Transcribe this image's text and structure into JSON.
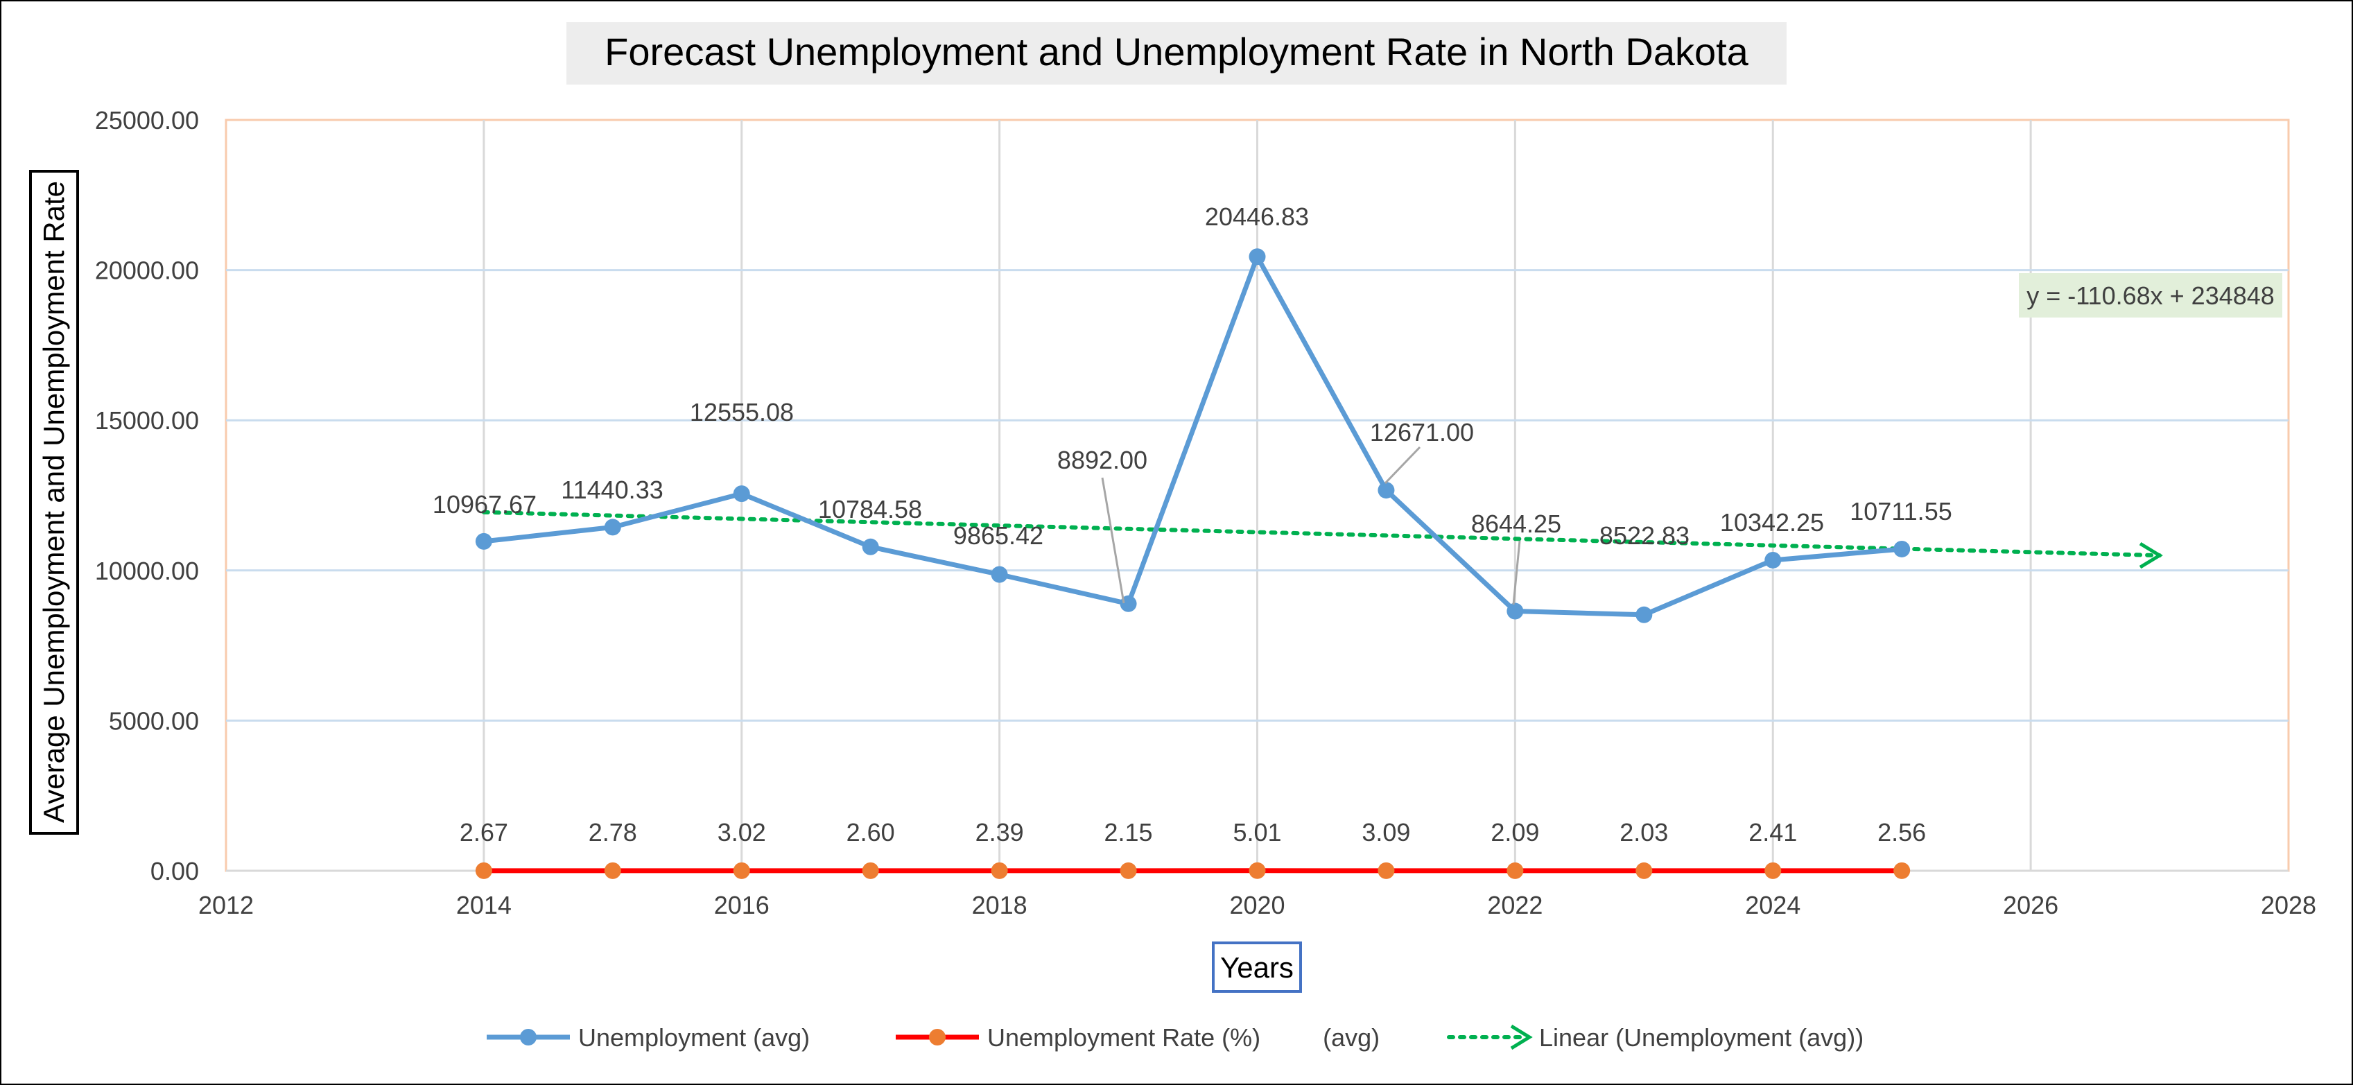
{
  "colors": {
    "unemployment": "#5B9BD5",
    "rate_line": "#FF0000",
    "rate_marker": "#ED7D31",
    "trend": "#00B050",
    "grid": "#C9DCEE",
    "vgrid": "#D9D9D9",
    "plot_border": "#F8CBAD",
    "title_bg": "#EDEDED",
    "equation_bg": "#E2EFDA",
    "text": "#404040",
    "xlabel_border": "#4472C4"
  },
  "chart_data": {
    "type": "line",
    "title": "Forecast Unemployment and Unemployment Rate in North Dakota",
    "xlabel": "Years",
    "ylabel": "Average Unemployment and Unemployment Rate",
    "xlim": [
      2012,
      2028
    ],
    "ylim": [
      0,
      25000
    ],
    "x_ticks": [
      "2012",
      "2014",
      "2016",
      "2018",
      "2020",
      "2022",
      "2024",
      "2026",
      "2028"
    ],
    "y_ticks": [
      "0.00",
      "5000.00",
      "10000.00",
      "15000.00",
      "20000.00",
      "25000.00"
    ],
    "grid": true,
    "legend_position": "bottom",
    "x": [
      2014,
      2015,
      2016,
      2017,
      2018,
      2019,
      2020,
      2021,
      2022,
      2023,
      2024,
      2025
    ],
    "series": [
      {
        "name": "Unemployment (avg)",
        "values": [
          10967.67,
          11440.33,
          12555.08,
          10784.58,
          9865.42,
          8892.0,
          20446.83,
          12671.0,
          8644.25,
          8522.83,
          10342.25,
          10711.55
        ],
        "labels": [
          "10967.67",
          "11440.33",
          "12555.08",
          "10784.58",
          "9865.42",
          "8892.00",
          "20446.83",
          "12671.00",
          "8644.25",
          "8522.83",
          "10342.25",
          "10711.55"
        ]
      },
      {
        "name": "Unemployment Rate (%)         (avg)",
        "values": [
          2.67,
          2.78,
          3.02,
          2.6,
          2.39,
          2.15,
          5.01,
          3.09,
          2.09,
          2.03,
          2.41,
          2.56
        ],
        "labels": [
          "2.67",
          "2.78",
          "3.02",
          "2.60",
          "2.39",
          "2.15",
          "5.01",
          "3.09",
          "2.09",
          "2.03",
          "2.41",
          "2.56"
        ]
      }
    ],
    "trendline": {
      "name": "Linear (Unemployment (avg))",
      "slope": -110.68,
      "intercept": 234848,
      "x_range": [
        2014,
        2027
      ],
      "equation": "y = -110.68x + 234848"
    }
  }
}
